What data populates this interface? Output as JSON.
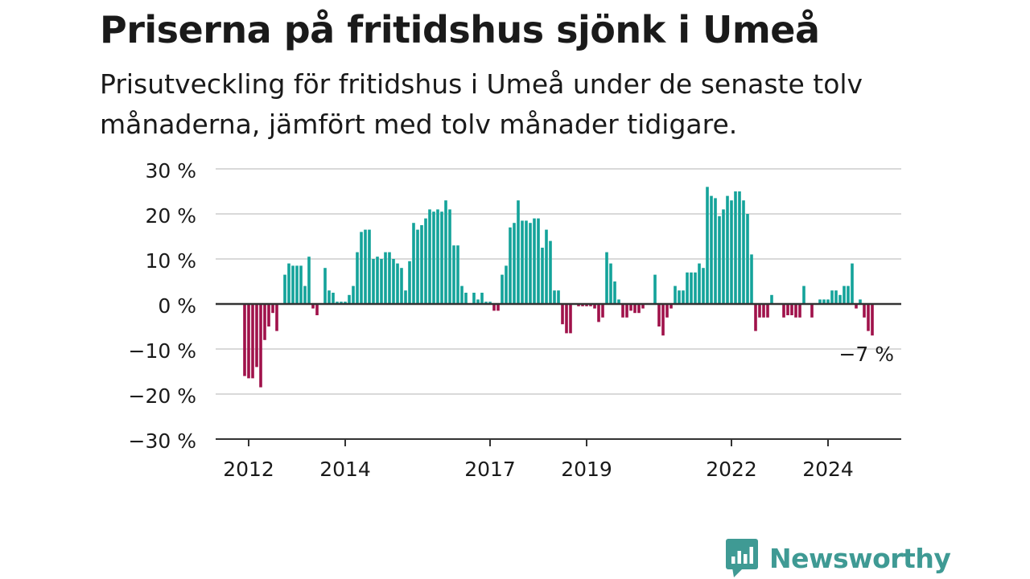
{
  "title": "Priserna på fritidshus sjönk i Umeå",
  "subtitle": "Prisutveckling för fritidshus i Umeå under de senaste tolv månaderna, jämfört med tolv månader tidigare.",
  "brand": "Newsworthy",
  "colors": {
    "positive": "#14a39a",
    "negative": "#a0124a",
    "grid": "#d9d9d9",
    "axis": "#333333",
    "text": "#1a1a1a",
    "brand": "#3f9a94"
  },
  "chart_data": {
    "type": "bar",
    "title": "Priserna på fritidshus sjönk i Umeå",
    "subtitle": "Prisutveckling för fritidshus i Umeå under de senaste tolv månaderna, jämfört med tolv månader tidigare.",
    "xlabel": "",
    "ylabel": "",
    "ylim": [
      -30,
      30
    ],
    "y_ticks": [
      30,
      20,
      10,
      0,
      -10,
      -20,
      -30
    ],
    "y_tick_labels": [
      "30 %",
      "20 %",
      "10 %",
      "0 %",
      "−10 %",
      "−20 %",
      "−30 %"
    ],
    "x_ticks": [
      2012,
      2014,
      2017,
      2019,
      2022,
      2024
    ],
    "x_tick_labels": [
      "2012",
      "2014",
      "2017",
      "2019",
      "2022",
      "2024"
    ],
    "x_start": "2011-12",
    "grid": true,
    "annotations": [
      {
        "text": "−7 %",
        "x": "2025-03",
        "y": -7
      }
    ],
    "values": [
      -16,
      -16.5,
      -16.5,
      -14,
      -18.5,
      -8,
      -5,
      -2,
      -6,
      0,
      6.5,
      9,
      8.5,
      8.5,
      8.5,
      4,
      10.5,
      -1,
      -2.5,
      0,
      8,
      3,
      2.5,
      0.5,
      0.5,
      0.5,
      2,
      4,
      11.5,
      16,
      16.5,
      16.5,
      10,
      10.5,
      10,
      11.5,
      11.5,
      10,
      9,
      8,
      3,
      9.5,
      18,
      16.5,
      17.5,
      19,
      21,
      20.5,
      21,
      20.5,
      23,
      21,
      13,
      13,
      4,
      2.5,
      0,
      2.5,
      1,
      2.5,
      0.5,
      0.5,
      -1.5,
      -1.5,
      6.5,
      8.5,
      17,
      18,
      23,
      18.5,
      18.5,
      18,
      19,
      19,
      12.5,
      16.5,
      14,
      3,
      3,
      -4.5,
      -6.5,
      -6.5,
      0,
      -0.5,
      -0.5,
      -0.5,
      -0.5,
      -1,
      -4,
      -3,
      11.5,
      9,
      5,
      1,
      -3,
      -3,
      -1.5,
      -2,
      -2,
      -1,
      0,
      0,
      6.5,
      -5,
      -7,
      -3,
      -1,
      4,
      3,
      3,
      7,
      7,
      7,
      9,
      8,
      26,
      24,
      23.5,
      19.5,
      21,
      24,
      23,
      25,
      25,
      23,
      20,
      11,
      -6,
      -3,
      -3,
      -3,
      2,
      0,
      0,
      -3,
      -2.5,
      -2.5,
      -3,
      -3,
      4,
      0,
      -3,
      0,
      1,
      1,
      1,
      3,
      3,
      2,
      4,
      4,
      9,
      -1,
      1,
      -3,
      -6,
      -7
    ]
  }
}
